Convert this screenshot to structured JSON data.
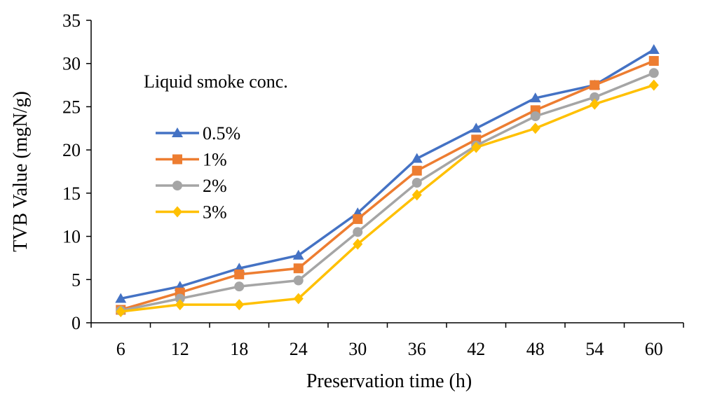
{
  "chart_data": {
    "type": "line",
    "xlabel": "Preservation time (h)",
    "ylabel": "TVB Value (mgN/g)",
    "categories": [
      "6",
      "12",
      "18",
      "24",
      "30",
      "36",
      "42",
      "48",
      "54",
      "60"
    ],
    "ylim": [
      0,
      35
    ],
    "yticks": [
      "0",
      "5",
      "10",
      "15",
      "20",
      "25",
      "30",
      "35"
    ],
    "grid": false,
    "legend_title": "Liquid smoke conc.",
    "legend_position": "left",
    "series": [
      {
        "name": "0.5%",
        "color": "#4472C4",
        "marker": "triangle",
        "values": [
          2.8,
          4.2,
          6.3,
          7.8,
          12.7,
          19.0,
          22.5,
          26.0,
          27.5,
          31.6
        ]
      },
      {
        "name": "1%",
        "color": "#ED7D31",
        "marker": "square",
        "values": [
          1.5,
          3.5,
          5.6,
          6.3,
          12.0,
          17.6,
          21.2,
          24.6,
          27.5,
          30.3
        ]
      },
      {
        "name": "2%",
        "color": "#A5A5A5",
        "marker": "circle",
        "values": [
          1.4,
          2.8,
          4.2,
          4.9,
          10.5,
          16.2,
          20.5,
          23.9,
          26.1,
          28.9
        ]
      },
      {
        "name": "3%",
        "color": "#FFC000",
        "marker": "diamond",
        "values": [
          1.3,
          2.1,
          2.1,
          2.8,
          9.1,
          14.8,
          20.3,
          22.5,
          25.3,
          27.5
        ]
      }
    ]
  }
}
